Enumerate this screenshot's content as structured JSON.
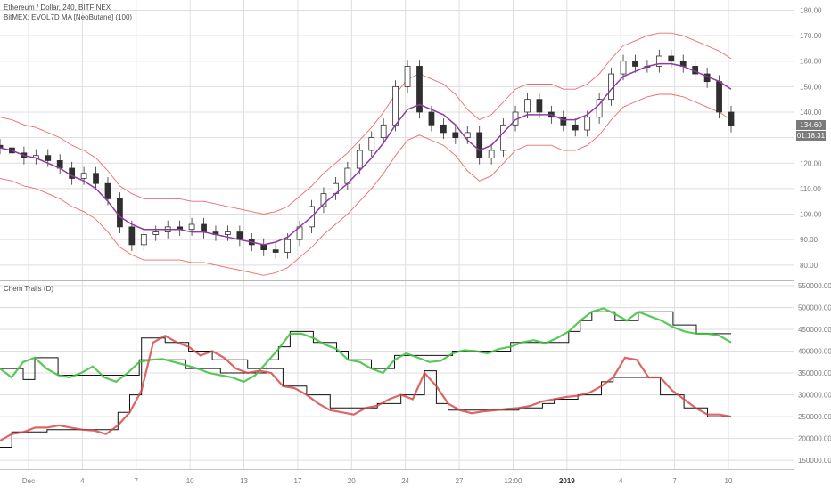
{
  "header": {
    "symbol": "Ethereum / Dollar, 240, BITFINEX",
    "indicator": "BitMEX: EVOL7D MA [NeoButane] (100)"
  },
  "lower_pane": {
    "title": "Chem Trails (D)"
  },
  "last_price": {
    "value": "134.60",
    "countdown": "01:18:31",
    "color": "#7a7a7a"
  },
  "colors": {
    "candle": "#2f2f2f",
    "ma": "#8e3aa0",
    "band": "#ef6b6b",
    "green": "#3cbf3c",
    "red": "#d44040",
    "step": "#111111",
    "grid": "#dedede",
    "axis_text": "#7a7a7a"
  },
  "chart_data": [
    {
      "type": "line",
      "title": "Ethereum / Dollar, 240, BITFINEX",
      "ylim": [
        74,
        184
      ],
      "y_ticks": [
        "180.00",
        "170.00",
        "160.00",
        "150.00",
        "140.00",
        "130.00",
        "120.00",
        "110.00",
        "100.00",
        "90.00",
        "80.00"
      ],
      "x_ticks": [
        "Dec",
        "4",
        "7",
        "10",
        "13",
        "17",
        "20",
        "24",
        "27",
        "12:00",
        "2019",
        "4",
        "7",
        "10"
      ],
      "series": [
        {
          "name": "Ethereum / Dollar",
          "values": [
            126,
            124,
            122,
            123,
            121,
            118,
            114,
            116,
            112,
            106,
            95,
            88,
            92,
            93,
            95,
            94,
            96,
            93,
            92,
            93,
            90,
            88,
            86,
            85,
            90,
            95,
            103,
            108,
            112,
            118,
            125,
            130,
            135,
            150,
            158,
            140,
            135,
            132,
            130,
            132,
            122,
            125,
            135,
            140,
            145,
            140,
            138,
            135,
            133,
            138,
            145,
            155,
            160,
            158,
            158,
            162,
            160,
            158,
            155,
            152,
            140,
            134.6
          ]
        },
        {
          "name": "EVOL7D MA",
          "values": [
            126,
            125,
            123,
            122,
            120,
            118,
            115,
            113,
            110,
            105,
            99,
            96,
            94,
            94,
            94,
            94,
            93,
            93,
            92,
            91,
            90,
            89,
            88,
            89,
            91,
            95,
            99,
            104,
            108,
            112,
            117,
            122,
            128,
            135,
            141,
            143,
            141,
            139,
            135,
            129,
            125,
            127,
            132,
            137,
            139,
            139,
            139,
            137,
            137,
            139,
            143,
            149,
            154,
            156,
            158,
            159,
            159,
            158,
            156,
            154,
            152,
            149
          ]
        },
        {
          "name": "Upper band",
          "values": [
            138,
            137,
            135,
            134,
            132,
            130,
            127,
            125,
            122,
            117,
            111,
            108,
            106,
            106,
            106,
            106,
            105,
            105,
            104,
            103,
            102,
            101,
            100,
            101,
            103,
            107,
            111,
            116,
            120,
            124,
            129,
            134,
            140,
            147,
            153,
            155,
            153,
            151,
            147,
            141,
            137,
            139,
            144,
            149,
            151,
            151,
            151,
            149,
            149,
            151,
            155,
            161,
            166,
            168,
            170,
            171,
            171,
            170,
            168,
            166,
            164,
            161
          ]
        },
        {
          "name": "Lower band",
          "values": [
            114,
            113,
            111,
            110,
            108,
            106,
            103,
            101,
            98,
            93,
            87,
            84,
            82,
            82,
            82,
            82,
            81,
            81,
            80,
            79,
            78,
            77,
            76,
            77,
            79,
            83,
            87,
            92,
            96,
            100,
            105,
            110,
            116,
            123,
            129,
            131,
            129,
            127,
            123,
            117,
            113,
            115,
            120,
            125,
            127,
            127,
            127,
            125,
            125,
            127,
            131,
            137,
            142,
            144,
            146,
            147,
            147,
            146,
            144,
            142,
            140,
            137
          ]
        }
      ]
    },
    {
      "type": "line",
      "title": "Chem Trails (D)",
      "ylim": [
        130000,
        560000
      ],
      "y_ticks": [
        "550000.00",
        "500000.00",
        "450000.00",
        "400000.00",
        "350000.00",
        "300000.00",
        "250000.00",
        "200000.00",
        "150000.00"
      ],
      "series": [
        {
          "name": "Green",
          "values": [
            360000,
            340000,
            375000,
            385000,
            360000,
            345000,
            340000,
            350000,
            365000,
            340000,
            330000,
            350000,
            375000,
            380000,
            382000,
            375000,
            368000,
            360000,
            350000,
            345000,
            340000,
            330000,
            345000,
            375000,
            405000,
            440000,
            440000,
            430000,
            415000,
            405000,
            380000,
            375000,
            360000,
            350000,
            380000,
            395000,
            385000,
            375000,
            378000,
            395000,
            402000,
            400000,
            395000,
            405000,
            410000,
            420000,
            425000,
            418000,
            430000,
            445000,
            470000,
            490000,
            498000,
            485000,
            470000,
            490000,
            480000,
            470000,
            455000,
            445000,
            440000,
            440000,
            435000,
            420000
          ]
        },
        {
          "name": "Green step",
          "values": [
            360000,
            360000,
            335000,
            385000,
            385000,
            345000,
            345000,
            345000,
            345000,
            345000,
            345000,
            345000,
            380000,
            380000,
            380000,
            380000,
            360000,
            360000,
            360000,
            350000,
            350000,
            350000,
            350000,
            380000,
            410000,
            445000,
            445000,
            420000,
            420000,
            400000,
            380000,
            380000,
            360000,
            360000,
            390000,
            390000,
            390000,
            390000,
            390000,
            400000,
            400000,
            400000,
            400000,
            400000,
            420000,
            420000,
            420000,
            420000,
            420000,
            445000,
            470000,
            490000,
            490000,
            470000,
            470000,
            490000,
            490000,
            490000,
            460000,
            460000,
            440000,
            440000,
            440000,
            440000
          ]
        },
        {
          "name": "Red",
          "values": [
            195000,
            210000,
            215000,
            225000,
            225000,
            230000,
            225000,
            220000,
            218000,
            210000,
            230000,
            260000,
            310000,
            420000,
            435000,
            420000,
            410000,
            390000,
            400000,
            385000,
            360000,
            350000,
            355000,
            350000,
            320000,
            315000,
            300000,
            280000,
            265000,
            260000,
            255000,
            270000,
            275000,
            290000,
            300000,
            290000,
            350000,
            320000,
            280000,
            265000,
            258000,
            262000,
            265000,
            268000,
            270000,
            275000,
            285000,
            290000,
            295000,
            298000,
            305000,
            320000,
            340000,
            385000,
            380000,
            340000,
            340000,
            310000,
            290000,
            270000,
            255000,
            255000,
            250000
          ]
        },
        {
          "name": "Red step",
          "values": [
            180000,
            215000,
            215000,
            215000,
            220000,
            220000,
            220000,
            220000,
            220000,
            220000,
            260000,
            300000,
            430000,
            430000,
            420000,
            420000,
            400000,
            400000,
            380000,
            380000,
            380000,
            360000,
            360000,
            360000,
            320000,
            320000,
            300000,
            300000,
            270000,
            270000,
            270000,
            270000,
            280000,
            280000,
            300000,
            300000,
            355000,
            280000,
            265000,
            265000,
            265000,
            265000,
            265000,
            265000,
            270000,
            270000,
            280000,
            290000,
            290000,
            300000,
            300000,
            330000,
            340000,
            340000,
            340000,
            340000,
            300000,
            300000,
            270000,
            270000,
            250000,
            250000,
            250000
          ]
        }
      ]
    }
  ]
}
